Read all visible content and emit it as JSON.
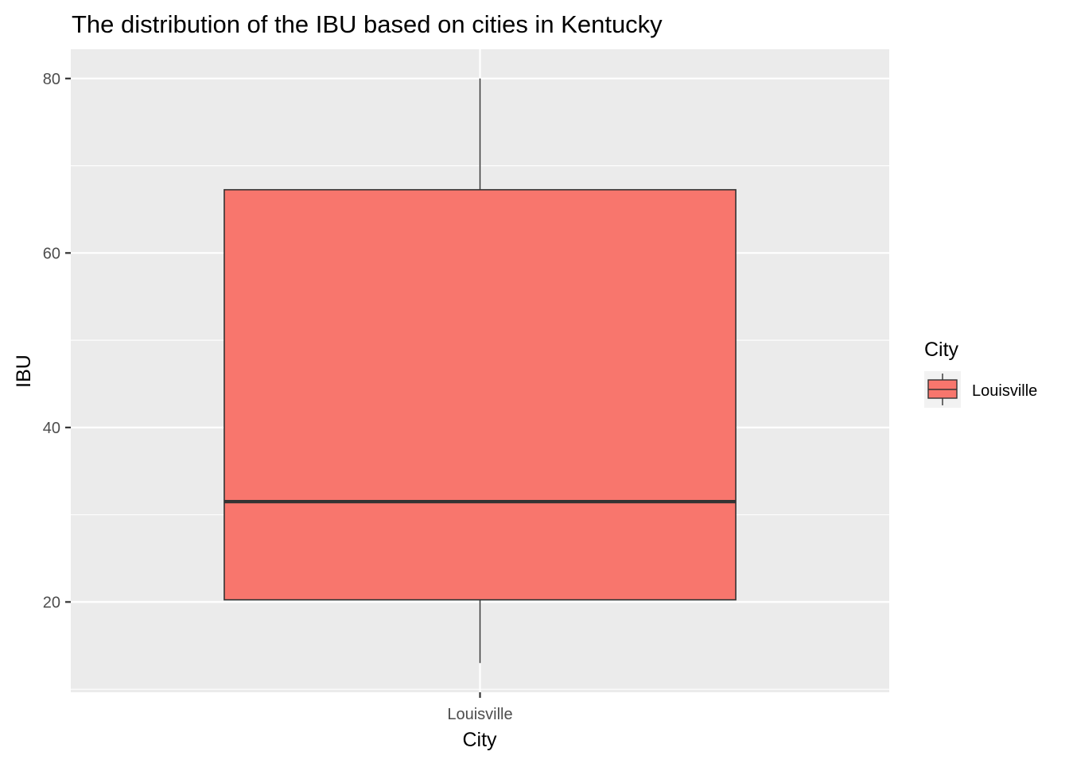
{
  "chart_data": {
    "type": "box",
    "title": "The distribution of the IBU based on cities in Kentucky",
    "xlabel": "City",
    "ylabel": "IBU",
    "categories": [
      "Louisville"
    ],
    "ylim": [
      9.65,
      83.35
    ],
    "yticks": [
      20,
      40,
      60,
      80
    ],
    "grid": true,
    "legend": {
      "title": "City",
      "placement": "right",
      "entries": [
        "Louisville"
      ]
    },
    "series": [
      {
        "name": "Louisville",
        "whisker_low": 13,
        "q1": 20.25,
        "median": 31.5,
        "q3": 67.25,
        "whisker_high": 80,
        "fill": "#F8766D"
      }
    ],
    "colors": {
      "panel": "#EBEBEB",
      "grid": "#FFFFFF",
      "outline": "#333333",
      "fill": "#F8766D"
    }
  }
}
